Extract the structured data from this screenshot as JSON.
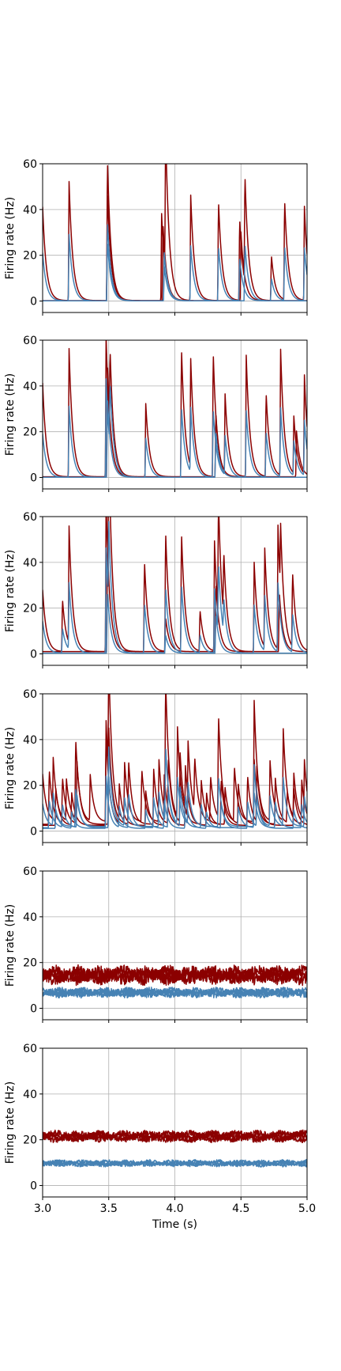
{
  "chart_data": {
    "type": "line",
    "layout": "6 vertically stacked panels sharing the x axis; tick labels and x-axis label only on the bottom panel",
    "shared_xlabel": "Time (s)",
    "xlim": [
      3.0,
      5.0
    ],
    "x_ticks": [
      "3.0",
      "3.5",
      "4.0",
      "4.5",
      "5.0"
    ],
    "grid": true,
    "colors": {
      "excitatory": "#8b0000",
      "inhibitory": "#4682b4",
      "axes": "#000000",
      "grid": "#b0b0b0"
    },
    "panels": [
      {
        "ylabel": "Firing rate (Hz)",
        "ylim": [
          -5,
          60
        ],
        "y_ticks": [
          "0",
          "20",
          "40",
          "60"
        ],
        "mode": "burst",
        "series": [
          {
            "color": "#8b0000",
            "baseline": 0.2,
            "peaks": [
              [
                3.0,
                41
              ],
              [
                3.2,
                52
              ],
              [
                3.49,
                62
              ],
              [
                3.9,
                38
              ],
              [
                3.93,
                62
              ],
              [
                4.12,
                46
              ],
              [
                4.33,
                44
              ],
              [
                4.49,
                36
              ],
              [
                4.53,
                47
              ],
              [
                4.73,
                20
              ],
              [
                4.83,
                44
              ],
              [
                4.98,
                41
              ]
            ]
          },
          {
            "color": "#8b0000",
            "baseline": 0.2,
            "peaks": [
              [
                3.49,
                48
              ],
              [
                3.91,
                34
              ],
              [
                4.5,
                30
              ]
            ]
          },
          {
            "color": "#4682b4",
            "baseline": 0.1,
            "peaks": [
              [
                3.0,
                21
              ],
              [
                3.2,
                29
              ],
              [
                3.49,
                35
              ],
              [
                3.92,
                21
              ],
              [
                4.12,
                24
              ],
              [
                4.33,
                24
              ],
              [
                4.49,
                19
              ],
              [
                4.73,
                10
              ],
              [
                4.83,
                24
              ],
              [
                4.98,
                23
              ]
            ]
          },
          {
            "color": "#4682b4",
            "baseline": 0.1,
            "peaks": [
              [
                3.49,
                26
              ],
              [
                3.92,
                15
              ],
              [
                4.53,
                25
              ]
            ]
          }
        ]
      },
      {
        "ylabel": "Firing rate (Hz)",
        "ylim": [
          -5,
          60
        ],
        "y_ticks": [
          "0",
          "20",
          "40",
          "60"
        ],
        "mode": "burst",
        "series": [
          {
            "color": "#8b0000",
            "baseline": 0.3,
            "peaks": [
              [
                3.0,
                41
              ],
              [
                3.2,
                56
              ],
              [
                3.48,
                62
              ],
              [
                3.51,
                35
              ],
              [
                3.78,
                32
              ],
              [
                4.05,
                57
              ],
              [
                4.12,
                47
              ],
              [
                4.29,
                55
              ],
              [
                4.38,
                34
              ],
              [
                4.54,
                53
              ],
              [
                4.69,
                37
              ],
              [
                4.8,
                55
              ],
              [
                4.9,
                25
              ],
              [
                4.98,
                43
              ]
            ]
          },
          {
            "color": "#8b0000",
            "baseline": 0.3,
            "peaks": [
              [
                3.49,
                50
              ],
              [
                4.31,
                28
              ],
              [
                4.92,
                20
              ]
            ]
          },
          {
            "color": "#4682b4",
            "baseline": 0.1,
            "peaks": [
              [
                3.0,
                19
              ],
              [
                3.2,
                31
              ],
              [
                3.48,
                43
              ],
              [
                3.51,
                27
              ],
              [
                3.78,
                17
              ],
              [
                4.05,
                31
              ],
              [
                4.12,
                28
              ],
              [
                4.29,
                30
              ],
              [
                4.38,
                17
              ],
              [
                4.54,
                29
              ],
              [
                4.69,
                20
              ],
              [
                4.8,
                30
              ],
              [
                4.9,
                15
              ],
              [
                4.98,
                24
              ]
            ]
          },
          {
            "color": "#4682b4",
            "baseline": 0.1,
            "peaks": [
              [
                3.49,
                35
              ],
              [
                4.31,
                20
              ]
            ]
          }
        ]
      },
      {
        "ylabel": "Firing rate (Hz)",
        "ylim": [
          -5,
          60
        ],
        "y_ticks": [
          "0",
          "20",
          "40",
          "60"
        ],
        "mode": "burst",
        "series": [
          {
            "color": "#8b0000",
            "baseline": 1.0,
            "peaks": [
              [
                3.0,
                27
              ],
              [
                3.15,
                23
              ],
              [
                3.2,
                51
              ],
              [
                3.48,
                66
              ],
              [
                3.5,
                60
              ],
              [
                3.77,
                40
              ],
              [
                3.93,
                53
              ],
              [
                4.05,
                52
              ],
              [
                4.19,
                18
              ],
              [
                4.3,
                48
              ],
              [
                4.33,
                51
              ],
              [
                4.37,
                28
              ],
              [
                4.6,
                39
              ],
              [
                4.68,
                43
              ],
              [
                4.78,
                54
              ],
              [
                4.8,
                29
              ],
              [
                4.89,
                33
              ]
            ]
          },
          {
            "color": "#8b0000",
            "baseline": 1.0,
            "peaks": [
              [
                3.49,
                46
              ],
              [
                3.93,
                15
              ],
              [
                4.31,
                30
              ],
              [
                4.79,
                26
              ]
            ]
          },
          {
            "color": "#4682b4",
            "baseline": 0.3,
            "peaks": [
              [
                3.0,
                14
              ],
              [
                3.15,
                11
              ],
              [
                3.2,
                29
              ],
              [
                3.48,
                46
              ],
              [
                3.5,
                35
              ],
              [
                3.77,
                22
              ],
              [
                3.93,
                29
              ],
              [
                4.05,
                30
              ],
              [
                4.19,
                8
              ],
              [
                4.3,
                28
              ],
              [
                4.33,
                30
              ],
              [
                4.37,
                15
              ],
              [
                4.6,
                21
              ],
              [
                4.68,
                24
              ],
              [
                4.78,
                30
              ],
              [
                4.89,
                17
              ]
            ]
          },
          {
            "color": "#4682b4",
            "baseline": 0.3,
            "peaks": [
              [
                3.49,
                27
              ],
              [
                3.93,
                8
              ],
              [
                4.31,
                17
              ]
            ]
          }
        ]
      },
      {
        "ylabel": "Firing rate (Hz)",
        "ylim": [
          -5,
          60
        ],
        "y_ticks": [
          "0",
          "20",
          "40",
          "60"
        ],
        "mode": "burst",
        "series": [
          {
            "color": "#8b0000",
            "baseline": 4.0,
            "peaks": [
              [
                3.0,
                21
              ],
              [
                3.08,
                27
              ],
              [
                3.18,
                18
              ],
              [
                3.25,
                35
              ],
              [
                3.36,
                20
              ],
              [
                3.48,
                44
              ],
              [
                3.5,
                49
              ],
              [
                3.62,
                25
              ],
              [
                3.75,
                23
              ],
              [
                3.88,
                27
              ],
              [
                3.93,
                59
              ],
              [
                4.02,
                39
              ],
              [
                4.1,
                33
              ],
              [
                4.15,
                23
              ],
              [
                4.27,
                20
              ],
              [
                4.33,
                45
              ],
              [
                4.45,
                24
              ],
              [
                4.6,
                53
              ],
              [
                4.72,
                26
              ],
              [
                4.82,
                40
              ],
              [
                4.9,
                19
              ],
              [
                4.98,
                26
              ]
            ]
          },
          {
            "color": "#8b0000",
            "baseline": 3.0,
            "peaks": [
              [
                3.05,
                24
              ],
              [
                3.15,
                20
              ],
              [
                3.26,
                27
              ],
              [
                3.5,
                42
              ],
              [
                3.65,
                28
              ],
              [
                3.84,
                24
              ],
              [
                3.95,
                29
              ],
              [
                4.04,
                30
              ],
              [
                4.2,
                19
              ],
              [
                4.38,
                16
              ],
              [
                4.48,
                17
              ],
              [
                4.6,
                28
              ],
              [
                4.76,
                20
              ],
              [
                4.85,
                14
              ],
              [
                4.96,
                19
              ]
            ]
          },
          {
            "color": "#8b0000",
            "baseline": 2.5,
            "peaks": [
              [
                3.1,
                16
              ],
              [
                3.22,
                14
              ],
              [
                3.48,
                40
              ],
              [
                3.58,
                17
              ],
              [
                3.78,
                15
              ],
              [
                3.92,
                22
              ],
              [
                4.08,
                26
              ],
              [
                4.24,
                14
              ],
              [
                4.35,
                20
              ],
              [
                4.55,
                22
              ],
              [
                4.62,
                24
              ],
              [
                4.9,
                16
              ]
            ]
          },
          {
            "color": "#4682b4",
            "baseline": 2.0,
            "peaks": [
              [
                3.0,
                10
              ],
              [
                3.08,
                14
              ],
              [
                3.25,
                17
              ],
              [
                3.48,
                22
              ],
              [
                3.5,
                24
              ],
              [
                3.62,
                12
              ],
              [
                3.88,
                15
              ],
              [
                3.93,
                33
              ],
              [
                4.02,
                20
              ],
              [
                4.1,
                18
              ],
              [
                4.33,
                22
              ],
              [
                4.6,
                27
              ],
              [
                4.72,
                13
              ],
              [
                4.82,
                21
              ],
              [
                4.98,
                13
              ]
            ]
          },
          {
            "color": "#4682b4",
            "baseline": 1.5,
            "peaks": [
              [
                3.05,
                12
              ],
              [
                3.15,
                10
              ],
              [
                3.26,
                14
              ],
              [
                3.5,
                22
              ],
              [
                3.65,
                15
              ],
              [
                3.84,
                13
              ],
              [
                3.95,
                16
              ],
              [
                4.04,
                17
              ],
              [
                4.2,
                10
              ],
              [
                4.48,
                9
              ],
              [
                4.6,
                15
              ],
              [
                4.76,
                11
              ],
              [
                4.96,
                10
              ]
            ]
          },
          {
            "color": "#4682b4",
            "baseline": 1.2,
            "peaks": [
              [
                3.1,
                8
              ],
              [
                3.22,
                7
              ],
              [
                3.48,
                20
              ],
              [
                3.58,
                9
              ],
              [
                3.78,
                8
              ],
              [
                3.92,
                12
              ],
              [
                4.08,
                14
              ],
              [
                4.24,
                7
              ],
              [
                4.35,
                11
              ],
              [
                4.55,
                12
              ],
              [
                4.62,
                13
              ],
              [
                4.9,
                8
              ]
            ]
          }
        ]
      },
      {
        "ylabel": "Firing rate (Hz)",
        "ylim": [
          -5,
          60
        ],
        "y_ticks": [
          "0",
          "20",
          "40",
          "60"
        ],
        "mode": "noise",
        "series": [
          {
            "color": "#8b0000",
            "mean": 15.5,
            "amp": 2.6
          },
          {
            "color": "#8b0000",
            "mean": 14.5,
            "amp": 2.6
          },
          {
            "color": "#8b0000",
            "mean": 13.5,
            "amp": 2.6
          },
          {
            "color": "#4682b4",
            "mean": 7.5,
            "amp": 1.3
          },
          {
            "color": "#4682b4",
            "mean": 6.8,
            "amp": 1.3
          },
          {
            "color": "#4682b4",
            "mean": 6.2,
            "amp": 1.3
          }
        ]
      },
      {
        "ylabel": "Firing rate (Hz)",
        "ylim": [
          -5,
          60
        ],
        "y_ticks": [
          "0",
          "20",
          "40",
          "60"
        ],
        "mode": "noise",
        "series": [
          {
            "color": "#8b0000",
            "mean": 22.5,
            "amp": 1.3
          },
          {
            "color": "#8b0000",
            "mean": 21.5,
            "amp": 1.3
          },
          {
            "color": "#8b0000",
            "mean": 20.5,
            "amp": 1.3
          },
          {
            "color": "#4682b4",
            "mean": 10.3,
            "amp": 0.8
          },
          {
            "color": "#4682b4",
            "mean": 9.6,
            "amp": 0.8
          },
          {
            "color": "#4682b4",
            "mean": 9.2,
            "amp": 0.8
          }
        ]
      }
    ]
  }
}
